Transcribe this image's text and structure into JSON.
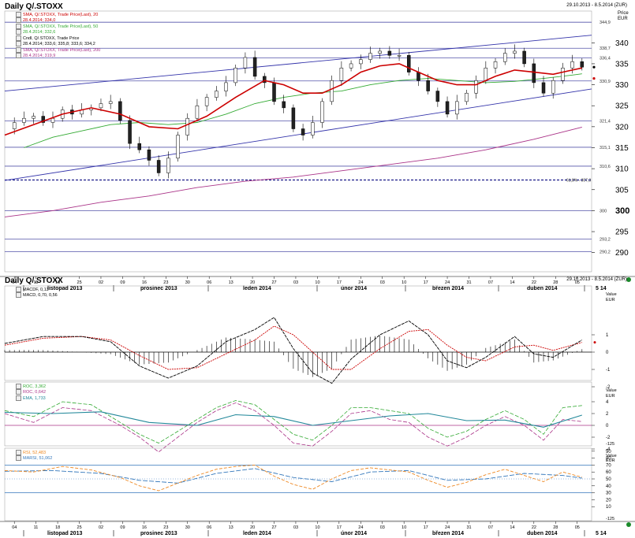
{
  "header": {
    "title": "Daily Q/.STOXX",
    "range": "29.10.2013 - 8.5.2014 (ZUR)",
    "price_label": "Price",
    "currency_label": "EUR"
  },
  "lower_header": {
    "title": "Daily Q/.STOXX",
    "range": "29.10.2013 - 8.5.2014 (ZUR)",
    "value_label": "Value",
    "currency_label": "EUR"
  },
  "legend_main": [
    {
      "text": "SMA, Q/.STOXX, Trade Price(Last), 20",
      "color": "#cc0000"
    },
    {
      "text": "28.4.2014; 334,0",
      "color": "#cc0000"
    },
    {
      "text": "SMA, Q/.STOXX, Trade Price(Last), 50",
      "color": "#33aa33"
    },
    {
      "text": "28.4.2014; 332,6",
      "color": "#33aa33"
    },
    {
      "text": "Cndl, Q/.STOXX, Trade Price",
      "color": "#000000"
    },
    {
      "text": "28.4.2014; 333,6; 335,8; 333,6; 334,2",
      "color": "#000000"
    },
    {
      "text": "SMA, Q/.STOXX, Trade Price(Last), 200",
      "color": "#aa3388"
    },
    {
      "text": "28.4.2014; 319,9",
      "color": "#aa3388"
    }
  ],
  "legend_macd": [
    {
      "text": "MACDF, 0,13",
      "color": "#000000"
    },
    {
      "text": "MACD, 0,70, 0,56",
      "color": "#000000"
    }
  ],
  "legend_roc": [
    {
      "text": "ROC, 3,362",
      "color": "#33aa33"
    },
    {
      "text": "ROC, 0,642",
      "color": "#aa3388"
    },
    {
      "text": "EMA, 1,733",
      "color": "#22889a"
    }
  ],
  "legend_rsi": [
    {
      "text": "RSI, 52,483",
      "color": "#ee8822"
    },
    {
      "text": "MARSI, 51,062",
      "color": "#3377bb"
    }
  ],
  "price_axis": {
    "ticks": [
      "340",
      "335",
      "330",
      "325",
      "320",
      "315",
      "310",
      "305",
      "300",
      "295",
      "290"
    ],
    "bold_tick": "300",
    "ylim": [
      286,
      347
    ]
  },
  "horizontal_levels": [
    {
      "value": 344.9,
      "label": "344,9"
    },
    {
      "value": 338.7,
      "label": "338,7"
    },
    {
      "value": 336.4,
      "label": "336,4"
    },
    {
      "value": 330.9,
      "label": "330,9"
    },
    {
      "value": 321.4,
      "label": "321,4"
    },
    {
      "value": 315.1,
      "label": "315,1"
    },
    {
      "value": 310.6,
      "label": "310,6"
    },
    {
      "value": 300.0,
      "label": "300"
    },
    {
      "value": 293.2,
      "label": "293,2"
    },
    {
      "value": 290.2,
      "label": "290,2"
    }
  ],
  "dashed_level": {
    "value": 307.3,
    "label": "61,8% - 307,3"
  },
  "trend_channel": {
    "upper": [
      [
        0,
        328.5
      ],
      [
        122,
        341.8
      ]
    ],
    "lower": [
      [
        0,
        307.2
      ],
      [
        122,
        329.0
      ]
    ]
  },
  "x_axis": {
    "days": [
      "04",
      "11",
      "18",
      "25",
      "02",
      "09",
      "16",
      "23",
      "30",
      "06",
      "13",
      "20",
      "27",
      "03",
      "10",
      "17",
      "24",
      "03",
      "10",
      "17",
      "24",
      "31",
      "07",
      "14",
      "22",
      "28",
      "05"
    ],
    "months": [
      "listopad 2013",
      "prosinec 2013",
      "leden 2014",
      "únor 2014",
      "březen 2014",
      "duben 2014",
      "5 14"
    ]
  },
  "macd_axis": {
    "ticks": [
      "1",
      "0",
      "-1",
      "-2"
    ]
  },
  "roc_axis": {
    "ticks": [
      "4",
      "2",
      "0",
      "-2",
      "-4"
    ],
    "bottom_label": "-125"
  },
  "rsi_axis": {
    "ticks": [
      "90",
      "80",
      "70",
      "60",
      "50",
      "40",
      "30",
      "20",
      "10"
    ],
    "bottom_label": "-125"
  },
  "chart_data": {
    "type": "line",
    "x_start_date": "2013-10-29",
    "x_end_date": "2014-05-08",
    "close_price": [
      [
        0,
        319.5
      ],
      [
        2,
        321.0
      ],
      [
        4,
        322.0
      ],
      [
        6,
        322.5
      ],
      [
        8,
        321.0
      ],
      [
        10,
        322.0
      ],
      [
        12,
        324.0
      ],
      [
        14,
        323.0
      ],
      [
        16,
        324.0
      ],
      [
        18,
        324.5
      ],
      [
        20,
        325.5
      ],
      [
        22,
        326.0
      ],
      [
        24,
        321.5
      ],
      [
        26,
        316.0
      ],
      [
        28,
        314.5
      ],
      [
        30,
        312.0
      ],
      [
        32,
        309.0
      ],
      [
        34,
        312.5
      ],
      [
        36,
        318.0
      ],
      [
        38,
        322.0
      ],
      [
        40,
        325.0
      ],
      [
        42,
        327.0
      ],
      [
        44,
        328.5
      ],
      [
        46,
        330.5
      ],
      [
        48,
        334.0
      ],
      [
        50,
        336.5
      ],
      [
        52,
        332.0
      ],
      [
        54,
        330.5
      ],
      [
        56,
        326.0
      ],
      [
        58,
        324.5
      ],
      [
        60,
        319.5
      ],
      [
        62,
        318.0
      ],
      [
        64,
        321.0
      ],
      [
        66,
        326.0
      ],
      [
        68,
        331.0
      ],
      [
        70,
        334.0
      ],
      [
        72,
        335.0
      ],
      [
        74,
        336.0
      ],
      [
        76,
        337.5
      ],
      [
        78,
        338.0
      ],
      [
        80,
        337.0
      ],
      [
        82,
        337.0
      ],
      [
        84,
        333.0
      ],
      [
        86,
        331.0
      ],
      [
        88,
        328.5
      ],
      [
        90,
        326.0
      ],
      [
        92,
        323.0
      ],
      [
        94,
        326.0
      ],
      [
        96,
        328.0
      ],
      [
        98,
        331.0
      ],
      [
        100,
        334.0
      ],
      [
        102,
        335.5
      ],
      [
        104,
        337.5
      ],
      [
        106,
        338.0
      ],
      [
        108,
        335.0
      ],
      [
        110,
        330.5
      ],
      [
        112,
        328.0
      ],
      [
        114,
        331.0
      ],
      [
        116,
        334.0
      ],
      [
        118,
        335.5
      ],
      [
        120,
        334.2
      ]
    ],
    "sma20": [
      [
        0,
        318.0
      ],
      [
        6,
        320.5
      ],
      [
        12,
        323.0
      ],
      [
        18,
        324.5
      ],
      [
        24,
        323.0
      ],
      [
        30,
        320.0
      ],
      [
        36,
        319.5
      ],
      [
        42,
        322.5
      ],
      [
        48,
        327.0
      ],
      [
        54,
        331.0
      ],
      [
        58,
        330.0
      ],
      [
        62,
        328.0
      ],
      [
        66,
        328.0
      ],
      [
        70,
        330.0
      ],
      [
        74,
        333.0
      ],
      [
        78,
        334.5
      ],
      [
        82,
        335.0
      ],
      [
        86,
        333.0
      ],
      [
        90,
        331.0
      ],
      [
        94,
        330.0
      ],
      [
        98,
        330.0
      ],
      [
        102,
        332.0
      ],
      [
        106,
        333.5
      ],
      [
        110,
        333.0
      ],
      [
        114,
        332.5
      ],
      [
        118,
        333.5
      ],
      [
        120,
        334.0
      ]
    ],
    "sma50": [
      [
        4,
        315.0
      ],
      [
        10,
        317.5
      ],
      [
        16,
        319.0
      ],
      [
        22,
        320.5
      ],
      [
        28,
        321.0
      ],
      [
        34,
        320.5
      ],
      [
        40,
        321.0
      ],
      [
        46,
        323.0
      ],
      [
        52,
        325.5
      ],
      [
        58,
        327.0
      ],
      [
        64,
        328.0
      ],
      [
        70,
        328.5
      ],
      [
        76,
        330.0
      ],
      [
        82,
        331.0
      ],
      [
        88,
        331.5
      ],
      [
        94,
        331.0
      ],
      [
        100,
        330.5
      ],
      [
        106,
        330.8
      ],
      [
        112,
        331.5
      ],
      [
        118,
        332.3
      ],
      [
        120,
        332.6
      ]
    ],
    "sma200": [
      [
        0,
        298.5
      ],
      [
        10,
        300.0
      ],
      [
        20,
        302.0
      ],
      [
        30,
        303.5
      ],
      [
        40,
        305.5
      ],
      [
        50,
        307.0
      ],
      [
        60,
        308.0
      ],
      [
        70,
        309.5
      ],
      [
        80,
        311.0
      ],
      [
        90,
        312.5
      ],
      [
        100,
        314.5
      ],
      [
        110,
        317.0
      ],
      [
        120,
        319.9
      ]
    ],
    "macd_line": [
      [
        0,
        0.5
      ],
      [
        8,
        0.9
      ],
      [
        16,
        0.9
      ],
      [
        22,
        0.6
      ],
      [
        28,
        -0.8
      ],
      [
        34,
        -1.5
      ],
      [
        40,
        -0.8
      ],
      [
        46,
        0.6
      ],
      [
        52,
        1.3
      ],
      [
        56,
        2.0
      ],
      [
        60,
        0.2
      ],
      [
        64,
        -1.2
      ],
      [
        68,
        -1.8
      ],
      [
        72,
        -0.4
      ],
      [
        78,
        1.0
      ],
      [
        84,
        1.8
      ],
      [
        88,
        1.0
      ],
      [
        92,
        -0.5
      ],
      [
        96,
        -0.9
      ],
      [
        100,
        -0.3
      ],
      [
        106,
        0.9
      ],
      [
        110,
        -0.1
      ],
      [
        114,
        -0.3
      ],
      [
        120,
        0.7
      ]
    ],
    "macd_signal": [
      [
        0,
        0.4
      ],
      [
        8,
        0.8
      ],
      [
        16,
        0.9
      ],
      [
        22,
        0.7
      ],
      [
        28,
        -0.2
      ],
      [
        34,
        -1.0
      ],
      [
        40,
        -0.9
      ],
      [
        46,
        -0.1
      ],
      [
        52,
        0.7
      ],
      [
        56,
        1.5
      ],
      [
        60,
        1.0
      ],
      [
        64,
        0.0
      ],
      [
        68,
        -1.0
      ],
      [
        72,
        -1.0
      ],
      [
        78,
        0.2
      ],
      [
        84,
        1.2
      ],
      [
        88,
        1.3
      ],
      [
        92,
        0.4
      ],
      [
        96,
        -0.3
      ],
      [
        100,
        -0.5
      ],
      [
        106,
        0.3
      ],
      [
        110,
        0.4
      ],
      [
        114,
        0.1
      ],
      [
        120,
        0.56
      ]
    ],
    "roc_green": [
      [
        0,
        2.5
      ],
      [
        6,
        1.5
      ],
      [
        12,
        4.0
      ],
      [
        18,
        3.5
      ],
      [
        24,
        0.5
      ],
      [
        28,
        -1.5
      ],
      [
        32,
        -3.0
      ],
      [
        36,
        -1.0
      ],
      [
        40,
        1.0
      ],
      [
        44,
        3.0
      ],
      [
        48,
        4.2
      ],
      [
        52,
        3.5
      ],
      [
        56,
        1.0
      ],
      [
        60,
        -1.5
      ],
      [
        64,
        -2.5
      ],
      [
        68,
        0.0
      ],
      [
        72,
        3.0
      ],
      [
        76,
        3.0
      ],
      [
        80,
        2.5
      ],
      [
        84,
        2.0
      ],
      [
        88,
        -0.5
      ],
      [
        92,
        -2.0
      ],
      [
        96,
        -1.0
      ],
      [
        100,
        1.0
      ],
      [
        104,
        2.5
      ],
      [
        108,
        1.0
      ],
      [
        112,
        -1.5
      ],
      [
        116,
        3.0
      ],
      [
        120,
        3.36
      ]
    ],
    "roc_purple": [
      [
        0,
        2.0
      ],
      [
        6,
        0.5
      ],
      [
        12,
        3.0
      ],
      [
        18,
        2.5
      ],
      [
        24,
        0.0
      ],
      [
        28,
        -2.0
      ],
      [
        32,
        -4.5
      ],
      [
        36,
        -2.0
      ],
      [
        40,
        0.5
      ],
      [
        44,
        2.5
      ],
      [
        48,
        3.8
      ],
      [
        52,
        2.5
      ],
      [
        56,
        0.0
      ],
      [
        60,
        -3.0
      ],
      [
        64,
        -3.5
      ],
      [
        68,
        -1.0
      ],
      [
        72,
        2.0
      ],
      [
        76,
        2.5
      ],
      [
        80,
        1.0
      ],
      [
        84,
        0.5
      ],
      [
        88,
        -2.0
      ],
      [
        92,
        -3.5
      ],
      [
        96,
        -2.0
      ],
      [
        100,
        0.0
      ],
      [
        104,
        1.5
      ],
      [
        108,
        0.0
      ],
      [
        112,
        -2.5
      ],
      [
        116,
        1.0
      ],
      [
        120,
        0.64
      ]
    ],
    "roc_ema": [
      [
        0,
        2.2
      ],
      [
        10,
        2.0
      ],
      [
        20,
        2.3
      ],
      [
        30,
        0.5
      ],
      [
        40,
        0.0
      ],
      [
        48,
        1.8
      ],
      [
        56,
        1.5
      ],
      [
        64,
        0.0
      ],
      [
        72,
        0.8
      ],
      [
        80,
        1.6
      ],
      [
        88,
        2.0
      ],
      [
        96,
        0.8
      ],
      [
        104,
        0.9
      ],
      [
        112,
        -0.3
      ],
      [
        120,
        1.73
      ]
    ],
    "rsi": [
      [
        0,
        62
      ],
      [
        6,
        60
      ],
      [
        12,
        68
      ],
      [
        18,
        63
      ],
      [
        24,
        52
      ],
      [
        28,
        40
      ],
      [
        32,
        33
      ],
      [
        36,
        44
      ],
      [
        40,
        55
      ],
      [
        44,
        64
      ],
      [
        48,
        68
      ],
      [
        52,
        70
      ],
      [
        56,
        54
      ],
      [
        60,
        42
      ],
      [
        64,
        35
      ],
      [
        68,
        50
      ],
      [
        72,
        62
      ],
      [
        76,
        66
      ],
      [
        80,
        63
      ],
      [
        84,
        60
      ],
      [
        88,
        48
      ],
      [
        92,
        38
      ],
      [
        96,
        45
      ],
      [
        100,
        56
      ],
      [
        104,
        64
      ],
      [
        108,
        55
      ],
      [
        112,
        46
      ],
      [
        116,
        60
      ],
      [
        120,
        52.5
      ]
    ],
    "marsi": [
      [
        0,
        61
      ],
      [
        10,
        62
      ],
      [
        20,
        58
      ],
      [
        28,
        48
      ],
      [
        36,
        44
      ],
      [
        44,
        58
      ],
      [
        52,
        65
      ],
      [
        60,
        52
      ],
      [
        68,
        46
      ],
      [
        76,
        60
      ],
      [
        84,
        62
      ],
      [
        92,
        48
      ],
      [
        100,
        50
      ],
      [
        108,
        58
      ],
      [
        116,
        55
      ],
      [
        120,
        51.1
      ]
    ]
  }
}
